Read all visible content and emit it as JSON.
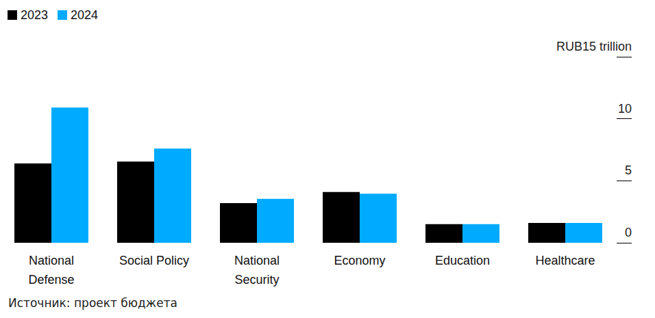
{
  "chart_data": {
    "type": "bar",
    "categories": [
      "National\nDefense",
      "Social Policy",
      "National\nSecurity",
      "Economy",
      "Education",
      "Healthcare"
    ],
    "series": [
      {
        "name": "2023",
        "color": "#000000",
        "values": [
          6.4,
          6.55,
          3.2,
          4.1,
          1.5,
          1.6
        ]
      },
      {
        "name": "2024",
        "color": "#00aaff",
        "values": [
          10.9,
          7.6,
          3.55,
          3.95,
          1.5,
          1.6
        ]
      }
    ],
    "ylim": [
      0,
      15
    ],
    "yticks": [
      0,
      5,
      10,
      {
        "value": 15,
        "label": "RUB15 trillion"
      }
    ],
    "grid": false,
    "legend": "top-left",
    "annotation": "Источник: проект бюджета"
  }
}
